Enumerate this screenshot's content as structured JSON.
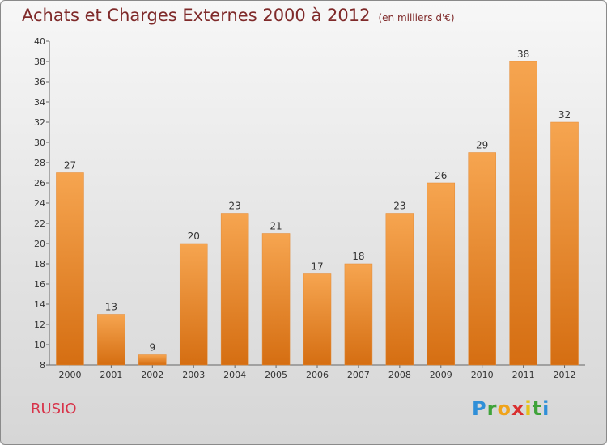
{
  "title": "Achats et Charges Externes 2000 à 2012",
  "unit": "(en milliers d'€)",
  "commune": "RUSIO",
  "logo": {
    "letters": [
      "P",
      "r",
      "o",
      "x",
      "i",
      "t",
      "i"
    ],
    "colors": [
      "#2f8fd8",
      "#3fa33a",
      "#f0a31a",
      "#d93030",
      "#e5c21a",
      "#3fa33a",
      "#2f8fd8"
    ]
  },
  "chart_data": {
    "type": "bar",
    "categories": [
      "2000",
      "2001",
      "2002",
      "2003",
      "2004",
      "2005",
      "2006",
      "2007",
      "2008",
      "2009",
      "2010",
      "2011",
      "2012"
    ],
    "values": [
      27,
      13,
      9,
      20,
      23,
      21,
      17,
      18,
      23,
      26,
      29,
      38,
      32
    ],
    "ylim": [
      8,
      40
    ],
    "yticks": [
      8,
      10,
      12,
      14,
      16,
      18,
      20,
      22,
      24,
      26,
      28,
      30,
      32,
      34,
      36,
      38,
      40
    ],
    "grid": false,
    "bar_color_top": "#f6a550",
    "bar_color_bottom": "#d56e12"
  }
}
